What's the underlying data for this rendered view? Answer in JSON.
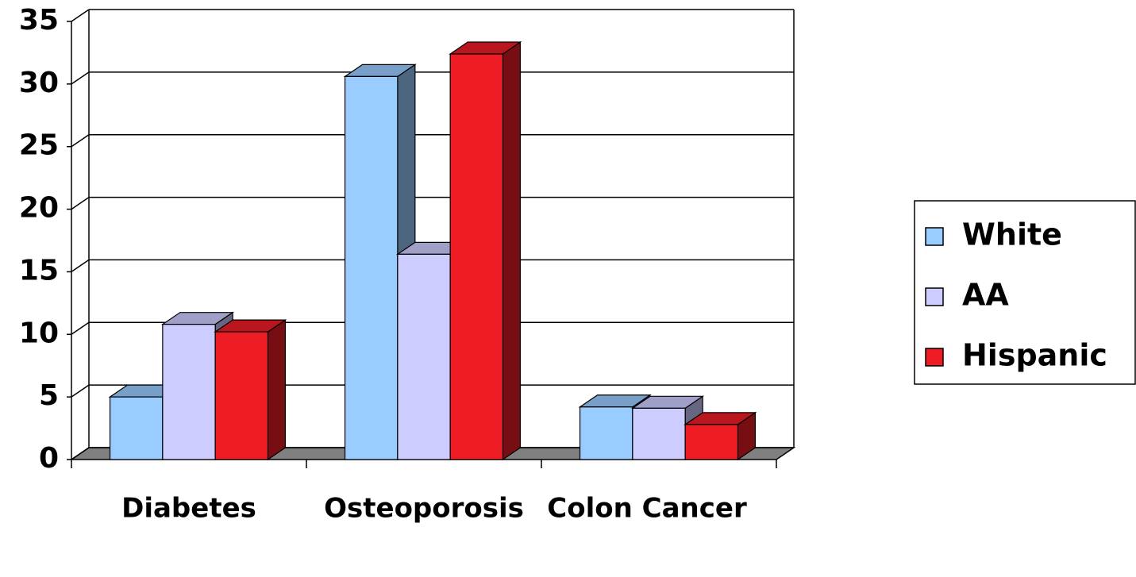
{
  "chart_data": {
    "type": "bar3d",
    "categories": [
      "Diabetes",
      "Osteoporosis",
      "Colon Cancer"
    ],
    "series": [
      {
        "name": "White",
        "color": "#99ccff",
        "values": [
          5,
          30.6,
          4.2
        ]
      },
      {
        "name": "AA",
        "color": "#ccccff",
        "values": [
          10.8,
          16.4,
          4.1
        ]
      },
      {
        "name": "Hispanic",
        "color": "#ee1c25",
        "values": [
          10.2,
          32.4,
          2.8
        ]
      }
    ],
    "ylim": [
      0,
      35
    ],
    "yticks": [
      0,
      5,
      10,
      15,
      20,
      25,
      30,
      35
    ],
    "grid": true,
    "legend": "right"
  }
}
